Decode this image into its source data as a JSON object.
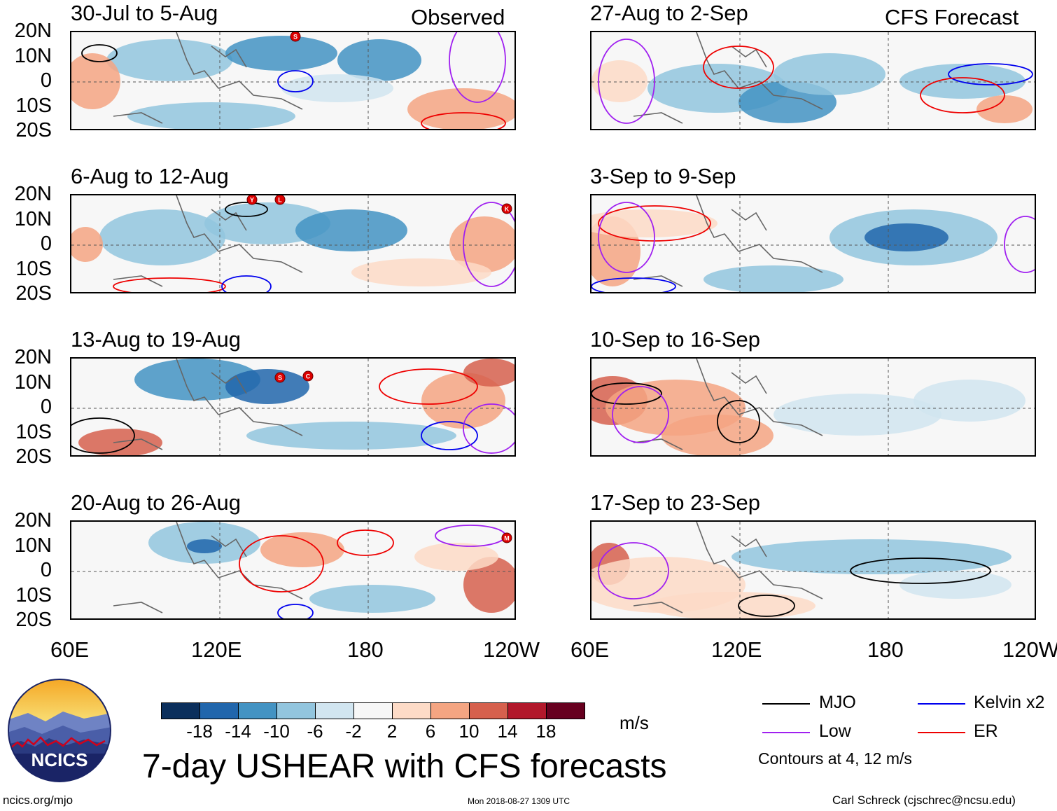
{
  "observed_label": "Observed",
  "forecast_label": "CFS Forecast",
  "panels": {
    "obs": [
      "30-Jul to 5-Aug",
      "6-Aug to 12-Aug",
      "13-Aug to 19-Aug",
      "20-Aug to 26-Aug"
    ],
    "fcst": [
      "27-Aug to 2-Sep",
      "3-Sep to 9-Sep",
      "10-Sep to 16-Sep",
      "17-Sep to 23-Sep"
    ]
  },
  "storm_markers": {
    "p0": [
      "S"
    ],
    "p1": [
      "Y",
      "L",
      "K"
    ],
    "p2": [
      "S",
      "C"
    ],
    "p3": [
      "M"
    ]
  },
  "lat_labels": [
    "20N",
    "10N",
    "0",
    "10S",
    "20S"
  ],
  "lon_labels": [
    "60E",
    "120E",
    "180",
    "120W"
  ],
  "colorbar": {
    "labels": [
      "-18",
      "-14",
      "-10",
      "-6",
      "-2",
      "2",
      "6",
      "10",
      "14",
      "18"
    ],
    "colors": [
      "#0b2f5c",
      "#2166ac",
      "#4393c3",
      "#92c5de",
      "#d1e5f0",
      "#f7f7f7",
      "#fddbc7",
      "#f4a582",
      "#d6604d",
      "#b2182b",
      "#67001f"
    ],
    "units": "m/s"
  },
  "legend": {
    "mjo": {
      "label": "MJO",
      "color": "#000000"
    },
    "kelvin": {
      "label": "Kelvin x2",
      "color": "#0000ee"
    },
    "low": {
      "label": "Low",
      "color": "#a020f0"
    },
    "er": {
      "label": "ER",
      "color": "#ee0000"
    },
    "contours_note": "Contours at 4, 12 m/s"
  },
  "main_title": "7-day USHEAR with CFS forecasts",
  "logo_text": "NCICS",
  "footer": {
    "url": "ncics.org/mjo",
    "timestamp": "Mon 2018-08-27 1309 UTC",
    "credit": "Carl Schreck (cjschrec@ncsu.edu)"
  },
  "chart_data": {
    "type": "heatmap",
    "variable": "7-day USHEAR",
    "units": "m/s",
    "levels": [
      -18,
      -14,
      -10,
      -6,
      -2,
      2,
      6,
      10,
      14,
      18
    ],
    "x_axis": {
      "ticks": [
        "60E",
        "120E",
        "180",
        "120W"
      ],
      "range_deg_east": [
        60,
        240
      ]
    },
    "y_axis": {
      "ticks": [
        "20N",
        "10N",
        "0",
        "10S",
        "20S"
      ],
      "range_deg": [
        -20,
        20
      ]
    },
    "panels": [
      {
        "period": "30-Jul to 5-Aug",
        "source": "Observed"
      },
      {
        "period": "6-Aug to 12-Aug",
        "source": "Observed"
      },
      {
        "period": "13-Aug to 19-Aug",
        "source": "Observed"
      },
      {
        "period": "20-Aug to 26-Aug",
        "source": "Observed"
      },
      {
        "period": "27-Aug to 2-Sep",
        "source": "CFS Forecast"
      },
      {
        "period": "3-Sep to 9-Sep",
        "source": "CFS Forecast"
      },
      {
        "period": "10-Sep to 16-Sep",
        "source": "CFS Forecast"
      },
      {
        "period": "17-Sep to 23-Sep",
        "source": "CFS Forecast"
      }
    ],
    "contours": [
      "MJO",
      "Kelvin x2",
      "Low",
      "ER"
    ],
    "contour_levels": [
      4,
      12
    ]
  }
}
